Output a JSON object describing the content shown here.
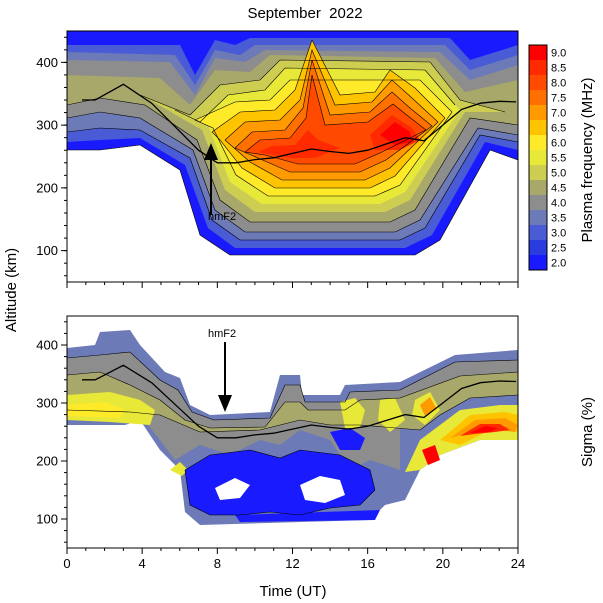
{
  "chart_data": [
    {
      "type": "heatmap",
      "title": "September  2022",
      "xlabel": "",
      "ylabel": "Altitude (km)",
      "xlim": [
        0,
        24
      ],
      "ylim": [
        50,
        450
      ],
      "x_ticks": [
        "0",
        "4",
        "8",
        "12",
        "16",
        "20",
        "24"
      ],
      "y_ticks": [
        "100",
        "200",
        "300",
        "400"
      ],
      "colorbar": {
        "label": "Plasma frequency (MHz)",
        "levels": [
          "2.0",
          "2.5",
          "3.0",
          "3.5",
          "4.0",
          "4.5",
          "5.0",
          "5.5",
          "6.0",
          "6.5",
          "7.0",
          "7.5",
          "8.0",
          "8.5",
          "9.0"
        ],
        "colors": [
          "#1a1aff",
          "#2a3cdd",
          "#4a5bd6",
          "#6c7ab8",
          "#8d8d8d",
          "#a8a86a",
          "#cdcd52",
          "#e8e838",
          "#ffea2a",
          "#ffc400",
          "#ff9a00",
          "#ff7000",
          "#ff4a00",
          "#ff2a00",
          "#ff0000"
        ]
      },
      "annotation": "hmF2",
      "hmF2_line": {
        "x": [
          0.8,
          1.5,
          3.0,
          4.5,
          6.0,
          7.0,
          8.0,
          9.0,
          10.0,
          11.0,
          12.0,
          13.0,
          14.0,
          15.0,
          16.0,
          17.0,
          18.0,
          19.0,
          20.0,
          21.0,
          22.0,
          23.0,
          23.9
        ],
        "y": [
          340,
          340,
          365,
          335,
          290,
          260,
          240,
          240,
          245,
          248,
          255,
          262,
          258,
          255,
          260,
          270,
          280,
          275,
          300,
          325,
          335,
          338,
          337
        ]
      }
    },
    {
      "type": "heatmap",
      "title": "",
      "xlabel": "Time (UT)",
      "ylabel": "",
      "xlim": [
        0,
        24
      ],
      "ylim": [
        50,
        450
      ],
      "x_ticks": [
        "0",
        "4",
        "8",
        "12",
        "16",
        "20",
        "24"
      ],
      "y_ticks": [
        "100",
        "200",
        "300",
        "400"
      ],
      "colorbar_label": "Sigma (%)",
      "annotation": "hmF2",
      "hmF2_line": {
        "x": [
          0.8,
          1.5,
          3.0,
          4.5,
          6.0,
          7.0,
          8.0,
          9.0,
          10.0,
          11.0,
          12.0,
          13.0,
          14.0,
          15.0,
          16.0,
          17.0,
          18.0,
          19.0,
          20.0,
          21.0,
          22.0,
          23.0,
          23.9
        ],
        "y": [
          340,
          340,
          365,
          335,
          290,
          260,
          240,
          240,
          245,
          248,
          255,
          262,
          258,
          255,
          260,
          270,
          280,
          275,
          300,
          325,
          335,
          338,
          337
        ]
      }
    }
  ],
  "ylabel_shared": "Altitude (km)"
}
